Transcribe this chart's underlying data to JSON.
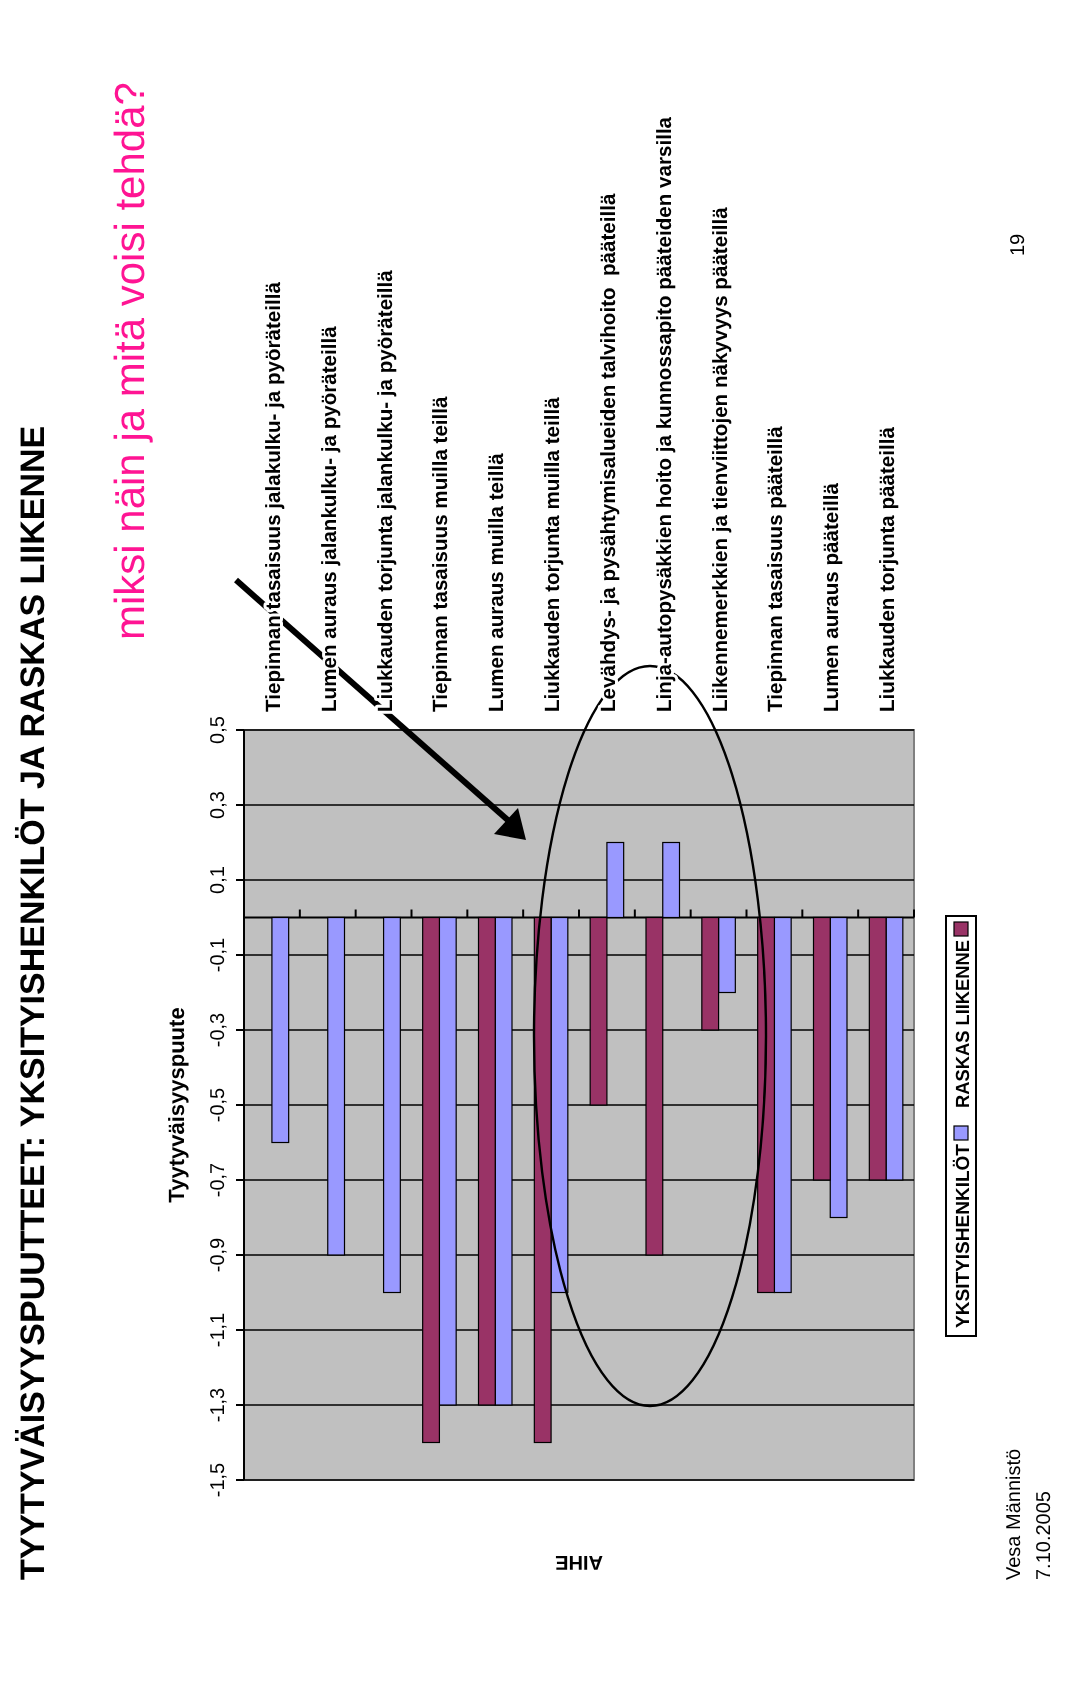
{
  "chart_data": {
    "type": "bar",
    "title": "TYYTYVÄISYYSPUUTTEET: YKSITYISHENKILÖT JA RASKAS LIIKENNE",
    "ylabel": "Tyytyväisyyspuute",
    "xlabel": "AIHE",
    "categories": [
      "Tiepinnan tasaisuus jalakulku- ja pyöräteillä",
      "Lumen auraus jalankulku- ja pyöräteillä",
      "Liukkauden torjunta jalankulku- ja pyöräteillä",
      "Tiepinnan tasaisuus muilla teillä",
      "Lumen auraus muilla teillä",
      "Liukkauden torjunta muilla teillä",
      "Levähdys- ja pysähtymisalueiden talvihoito  pääteillä",
      "Linja-autopysäkkien hoito ja kunnossapito pääteiden varsilla",
      "Liikennemerkkien ja tienviittojen näkyvyys pääteillä",
      "Tiepinnan tasaisuus pääteillä",
      "Lumen auraus pääteillä",
      "Liukkauden torjunta pääteillä"
    ],
    "series": [
      {
        "name": "YKSITYISHENKILÖT",
        "color": "#9999ff",
        "values": [
          -0.6,
          -0.9,
          -1.0,
          -1.3,
          -1.3,
          -1.0,
          0.2,
          0.2,
          -0.2,
          -1.0,
          -0.8,
          -0.7
        ]
      },
      {
        "name": "RASKAS LIIKENNE",
        "color": "#993366",
        "values": [
          null,
          null,
          null,
          -1.4,
          -1.3,
          -1.4,
          -0.5,
          -0.9,
          -0.3,
          -1.0,
          -0.7,
          -0.7
        ]
      }
    ],
    "ylim": [
      -1.5,
      0.5
    ],
    "yticks": [
      {
        "value": -1.5,
        "label": "-1,5"
      },
      {
        "value": -1.3,
        "label": "-1,3"
      },
      {
        "value": -1.1,
        "label": "-1,1"
      },
      {
        "value": -0.9,
        "label": "-0,9"
      },
      {
        "value": -0.7,
        "label": "-0,7"
      },
      {
        "value": -0.5,
        "label": "-0,5"
      },
      {
        "value": -0.3,
        "label": "-0,3"
      },
      {
        "value": -0.1,
        "label": "-0,1"
      },
      {
        "value": 0.1,
        "label": "0,1"
      },
      {
        "value": 0.3,
        "label": "0,3"
      },
      {
        "value": 0.5,
        "label": "0,5"
      }
    ],
    "grid": "y",
    "legend": "bottom",
    "annotations": [
      "miksi näin ja mitä voisi tehdä?",
      "Vesa Männistö",
      "7.10.2005",
      "19"
    ]
  }
}
